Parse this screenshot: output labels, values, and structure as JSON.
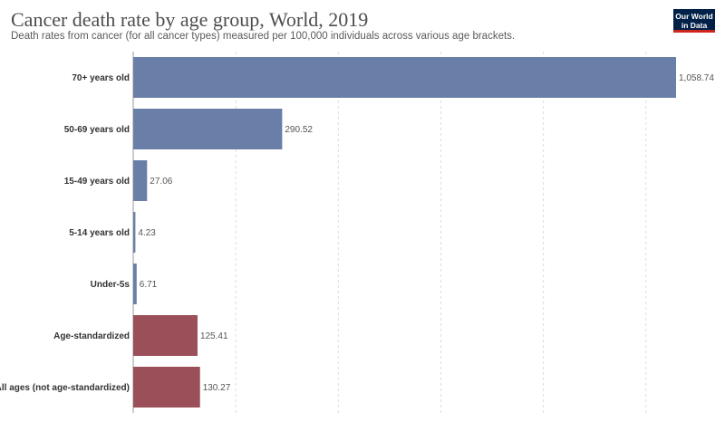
{
  "header": {
    "title": "Cancer death rate by age group, World, 2019",
    "subtitle": "Death rates from cancer (for all cancer types) measured per 100,000 individuals across various age brackets."
  },
  "logo": {
    "line1": "Our World",
    "line2": "in Data",
    "background": "#002147",
    "accent": "#ce261e"
  },
  "chart_data": {
    "type": "bar",
    "orientation": "horizontal",
    "categories": [
      "70+ years old",
      "50-69 years old",
      "15-49 years old",
      "5-14 years old",
      "Under-5s",
      "Age-standardized",
      "All ages (not age-standardized)"
    ],
    "values": [
      1058.74,
      290.52,
      27.06,
      4.23,
      6.71,
      125.41,
      130.27
    ],
    "value_labels": [
      "1,058.74",
      "290.52",
      "27.06",
      "4.23",
      "6.71",
      "125.41",
      "130.27"
    ],
    "colors": [
      "#6a7fa8",
      "#6a7fa8",
      "#6a7fa8",
      "#6a7fa8",
      "#6a7fa8",
      "#9b4f58",
      "#9b4f58"
    ],
    "xlim": [
      0,
      1058.74
    ],
    "gridlines": [
      0,
      200,
      400,
      600,
      800,
      1000
    ],
    "grid": true,
    "legend": "none"
  }
}
